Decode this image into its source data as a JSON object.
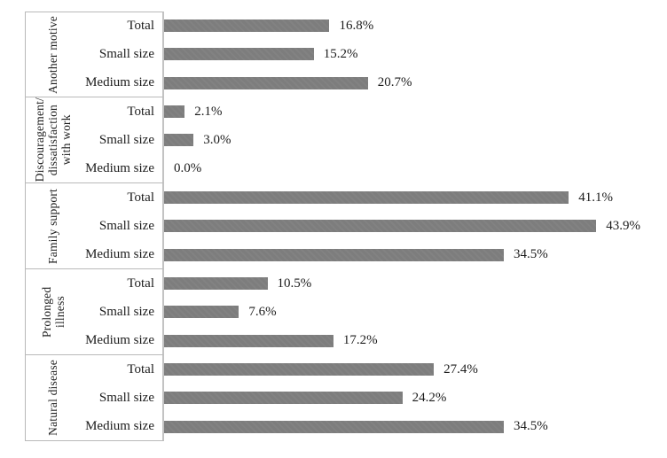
{
  "chart_data": {
    "type": "bar",
    "orientation": "horizontal",
    "title": "",
    "xlabel": "",
    "ylabel": "",
    "unit": "%",
    "xlim": [
      0,
      50
    ],
    "grid": false,
    "legend": "none",
    "bar_color": "#7d7d7d",
    "axis_line_color": "#b9b9b9",
    "row_labels": [
      "Total",
      "Small size",
      "Medium size"
    ],
    "groups": [
      {
        "category": "Another motive",
        "bars": [
          {
            "label": "Total",
            "value": 16.8,
            "text": "16.8%"
          },
          {
            "label": "Small size",
            "value": 15.2,
            "text": "15.2%"
          },
          {
            "label": "Medium size",
            "value": 20.7,
            "text": "20.7%"
          }
        ]
      },
      {
        "category": "Discouragement/\ndissatisfaction\nwith work",
        "bars": [
          {
            "label": "Total",
            "value": 2.1,
            "text": "2.1%"
          },
          {
            "label": "Small size",
            "value": 3.0,
            "text": "3.0%"
          },
          {
            "label": "Medium size",
            "value": 0.0,
            "text": "0.0%"
          }
        ]
      },
      {
        "category": "Family support",
        "bars": [
          {
            "label": "Total",
            "value": 41.1,
            "text": "41.1%"
          },
          {
            "label": "Small size",
            "value": 43.9,
            "text": "43.9%"
          },
          {
            "label": "Medium size",
            "value": 34.5,
            "text": "34.5%"
          }
        ]
      },
      {
        "category": "Prolonged illness",
        "bars": [
          {
            "label": "Total",
            "value": 10.5,
            "text": "10.5%"
          },
          {
            "label": "Small size",
            "value": 7.6,
            "text": "7.6%"
          },
          {
            "label": "Medium size",
            "value": 17.2,
            "text": "17.2%"
          }
        ]
      },
      {
        "category": "Natural disease",
        "bars": [
          {
            "label": "Total",
            "value": 27.4,
            "text": "27.4%"
          },
          {
            "label": "Small size",
            "value": 24.2,
            "text": "24.2%"
          },
          {
            "label": "Medium size",
            "value": 34.5,
            "text": "34.5%"
          }
        ]
      }
    ]
  }
}
